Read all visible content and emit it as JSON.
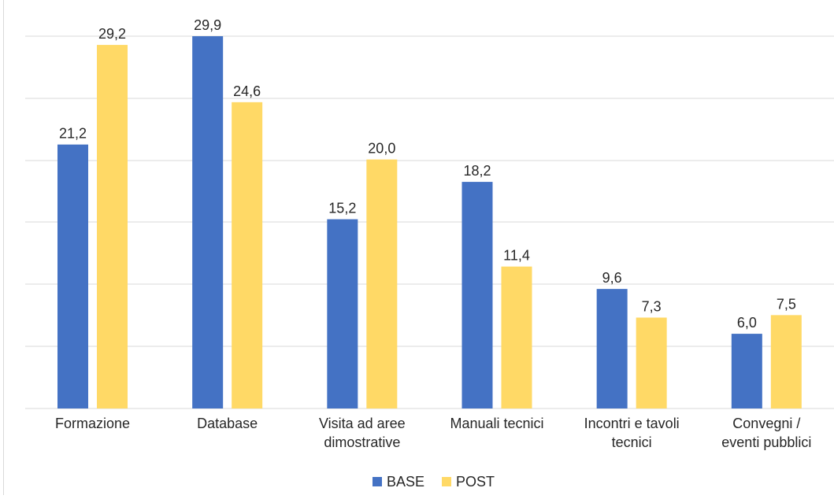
{
  "chart_data": {
    "type": "bar",
    "categories": [
      [
        "Formazione"
      ],
      [
        "Database"
      ],
      [
        "Visita ad aree",
        "dimostrative"
      ],
      [
        "Manuali tecnici"
      ],
      [
        "Incontri e tavoli",
        "tecnici"
      ],
      [
        "Convegni /",
        "eventi pubblici"
      ]
    ],
    "series": [
      {
        "name": "BASE",
        "color": "#4472C4",
        "values": [
          21.2,
          29.9,
          15.2,
          18.2,
          9.6,
          6.0
        ],
        "labels": [
          "21,2",
          "29,9",
          "15,2",
          "18,2",
          "9,6",
          "6,0"
        ]
      },
      {
        "name": "POST",
        "color": "#FFD966",
        "values": [
          29.2,
          24.6,
          20.0,
          11.4,
          7.3,
          7.5
        ],
        "labels": [
          "29,2",
          "24,6",
          "20,0",
          "11,4",
          "7,3",
          "7,5"
        ]
      }
    ],
    "ylim": [
      0,
      30
    ],
    "grid": true,
    "legend": "bottom-center"
  }
}
